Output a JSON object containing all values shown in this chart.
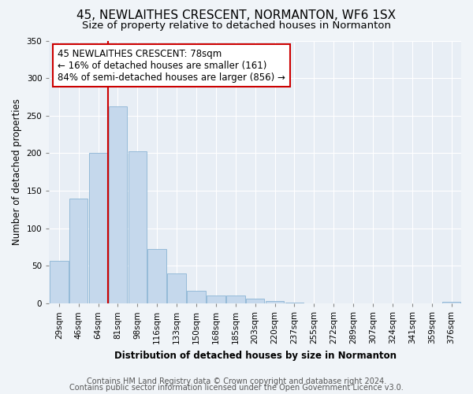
{
  "title": "45, NEWLAITHES CRESCENT, NORMANTON, WF6 1SX",
  "subtitle": "Size of property relative to detached houses in Normanton",
  "xlabel": "Distribution of detached houses by size in Normanton",
  "ylabel": "Number of detached properties",
  "categories": [
    "29sqm",
    "46sqm",
    "64sqm",
    "81sqm",
    "98sqm",
    "116sqm",
    "133sqm",
    "150sqm",
    "168sqm",
    "185sqm",
    "203sqm",
    "220sqm",
    "237sqm",
    "255sqm",
    "272sqm",
    "289sqm",
    "307sqm",
    "324sqm",
    "341sqm",
    "359sqm",
    "376sqm"
  ],
  "values": [
    57,
    140,
    200,
    262,
    203,
    72,
    40,
    17,
    10,
    10,
    6,
    3,
    1,
    0,
    0,
    0,
    0,
    0,
    0,
    0,
    2
  ],
  "bar_color": "#c5d8ec",
  "bar_edgecolor": "#8ab4d4",
  "vline_x": 2.5,
  "vline_color": "#cc0000",
  "annotation_text": "45 NEWLAITHES CRESCENT: 78sqm\n← 16% of detached houses are smaller (161)\n84% of semi-detached houses are larger (856) →",
  "annotation_box_color": "#ffffff",
  "annotation_box_edgecolor": "#cc0000",
  "ylim": [
    0,
    350
  ],
  "yticks": [
    0,
    50,
    100,
    150,
    200,
    250,
    300,
    350
  ],
  "footer_line1": "Contains HM Land Registry data © Crown copyright and database right 2024.",
  "footer_line2": "Contains public sector information licensed under the Open Government Licence v3.0.",
  "bg_color": "#f0f4f8",
  "plot_bg_color": "#e8eef5",
  "title_fontsize": 11,
  "subtitle_fontsize": 9.5,
  "label_fontsize": 8.5,
  "tick_fontsize": 7.5,
  "footer_fontsize": 7,
  "annotation_fontsize": 8.5
}
